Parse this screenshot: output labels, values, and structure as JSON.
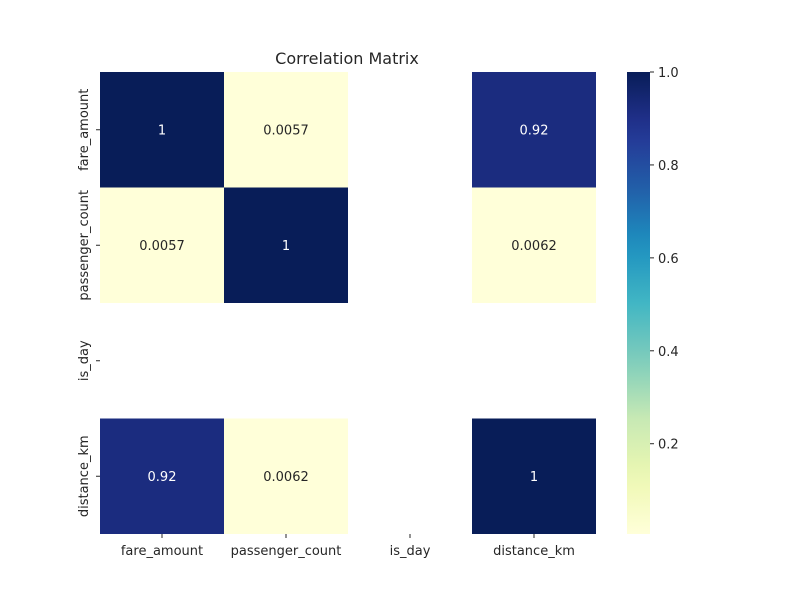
{
  "chart_data": {
    "type": "heatmap",
    "title": "Correlation Matrix",
    "x_labels": [
      "fare_amount",
      "passenger_count",
      "is_day",
      "distance_km"
    ],
    "y_labels": [
      "fare_amount",
      "passenger_count",
      "is_day",
      "distance_km"
    ],
    "values": [
      [
        1.0,
        0.0057,
        null,
        0.92
      ],
      [
        0.0057,
        1.0,
        null,
        0.0062
      ],
      [
        null,
        null,
        null,
        null
      ],
      [
        0.92,
        0.0062,
        null,
        1.0
      ]
    ],
    "annotations": [
      [
        "1",
        "0.0057",
        "",
        "0.92"
      ],
      [
        "0.0057",
        "1",
        "",
        "0.0062"
      ],
      [
        "",
        "",
        "",
        ""
      ],
      [
        "0.92",
        "0.0062",
        "",
        "1"
      ]
    ],
    "colormap": "YlGnBu",
    "colorbar": {
      "range": [
        0.0057,
        1.0
      ],
      "ticks": [
        "0.2",
        "0.4",
        "0.6",
        "0.8",
        "1.0"
      ],
      "tick_values": [
        0.2,
        0.4,
        0.6,
        0.8,
        1.0
      ]
    },
    "annotation_colors": {
      "dark_text": "#262626",
      "light_text": "#ffffff"
    },
    "missing_color": "#ffffff"
  }
}
